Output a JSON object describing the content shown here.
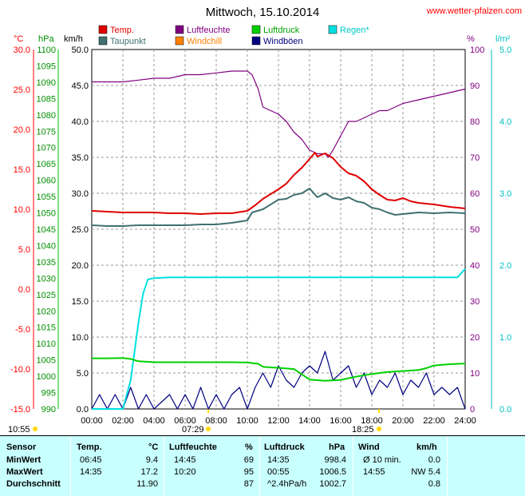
{
  "header": {
    "title": "Mittwoch, 15.10.2014",
    "site": "www.wetter-pfalzen.com"
  },
  "axis_units": {
    "temp": "°C",
    "pressure": "hPa",
    "wind": "km/h",
    "humidity": "%",
    "rain": "l/m²"
  },
  "legend": [
    {
      "label": "Temp.",
      "color": "#e00000"
    },
    {
      "label": "Luftfeuchte",
      "color": "#800080"
    },
    {
      "label": "Luftdruck",
      "color": "#00d000"
    },
    {
      "label": "Regen*",
      "color": "#00e0e0"
    },
    {
      "label": "Taupunkt",
      "color": "#407070"
    },
    {
      "label": "Windchill",
      "color": "#ff8000"
    },
    {
      "label": "Windböen",
      "color": "#000080"
    }
  ],
  "sun": {
    "sunrise_left": "10:55",
    "sunrise": "07:29",
    "sunset": "18:25"
  },
  "chart_data": {
    "type": "line",
    "x_range": [
      0,
      24
    ],
    "x_ticks": [
      "00:00",
      "02:00",
      "04:00",
      "06:00",
      "08:00",
      "10:00",
      "12:00",
      "14:00",
      "16:00",
      "18:00",
      "20:00",
      "22:00",
      "24:00"
    ],
    "axes": {
      "temp": {
        "range": [
          -15,
          30
        ],
        "ticks": [
          "30.0",
          "25.0",
          "20.0",
          "15.0",
          "10.0",
          "5.0",
          "0.0",
          "-5.0",
          "-10.0",
          "-15.0"
        ],
        "color": "#ff0000"
      },
      "pressure": {
        "range": [
          990,
          1100
        ],
        "ticks": [
          "1100",
          "1095",
          "1090",
          "1085",
          "1080",
          "1075",
          "1070",
          "1065",
          "1060",
          "1055",
          "1050",
          "1045",
          "1040",
          "1035",
          "1030",
          "1025",
          "1020",
          "1015",
          "1010",
          "1005",
          "1000",
          "995",
          "990"
        ],
        "color": "#009000"
      },
      "wind": {
        "range": [
          0,
          50
        ],
        "ticks": [
          "50.0",
          "45.0",
          "40.0",
          "35.0",
          "30.0",
          "25.0",
          "20.0",
          "15.0",
          "10.0",
          "5.0",
          "0.0"
        ],
        "color": "#000000"
      },
      "humidity": {
        "range": [
          0,
          100
        ],
        "ticks": [
          "100",
          "90",
          "80",
          "70",
          "60",
          "50",
          "40",
          "30",
          "20",
          "10",
          "0"
        ],
        "color": "#800080"
      },
      "rain": {
        "range": [
          0,
          5
        ],
        "ticks": [
          "5.0",
          "4.0",
          "3.0",
          "2.0",
          "1.0",
          "0.0"
        ],
        "color": "#00c0c0"
      }
    },
    "series": [
      {
        "name": "Temp.",
        "axis": "temp",
        "color": "#e00000",
        "x": [
          0,
          1,
          2,
          3,
          4,
          5,
          6,
          7,
          8,
          9,
          10,
          10.5,
          11,
          12,
          12.5,
          13,
          13.5,
          14,
          14.35,
          14.5,
          15,
          15.5,
          16,
          16.5,
          17,
          17.5,
          18,
          18.5,
          19,
          19.5,
          20,
          20.5,
          21,
          22,
          23,
          24
        ],
        "y": [
          9.8,
          9.7,
          9.6,
          9.6,
          9.6,
          9.5,
          9.5,
          9.4,
          9.5,
          9.5,
          9.8,
          10.5,
          11.3,
          12.5,
          13.2,
          14.3,
          15.2,
          16.3,
          17.1,
          16.6,
          17.0,
          16.4,
          15.3,
          14.5,
          14.2,
          13.5,
          12.5,
          11.8,
          11.2,
          11.1,
          11.4,
          11.0,
          10.8,
          10.6,
          10.3,
          10.1
        ]
      },
      {
        "name": "Taupunkt",
        "axis": "temp",
        "color": "#407070",
        "x": [
          0,
          1,
          2,
          3,
          4,
          5,
          6,
          7,
          8,
          9,
          10,
          10.3,
          11,
          12,
          12.5,
          13,
          13.5,
          14,
          14.5,
          15,
          15.5,
          16,
          16.5,
          17,
          17.5,
          18,
          18.5,
          19,
          19.5,
          20,
          21,
          22,
          23,
          24
        ],
        "y": [
          8.0,
          7.9,
          7.9,
          8.0,
          8.0,
          8.0,
          8.0,
          8.1,
          8.1,
          8.3,
          8.6,
          9.6,
          10.0,
          11.2,
          11.3,
          11.8,
          12.0,
          12.6,
          11.5,
          12.0,
          11.4,
          11.2,
          11.5,
          11.0,
          10.8,
          10.2,
          10.0,
          9.6,
          9.3,
          9.4,
          9.6,
          9.5,
          9.6,
          9.5
        ]
      },
      {
        "name": "Luftfeuchte",
        "axis": "humidity",
        "color": "#800080",
        "x": [
          0,
          1,
          2,
          3,
          4,
          5,
          6,
          7,
          8,
          9,
          10,
          10.3,
          10.7,
          11,
          11.5,
          12,
          12.5,
          13,
          13.5,
          14,
          14.5,
          15,
          15.2,
          15.5,
          16,
          16.5,
          17,
          17.5,
          18,
          18.5,
          19,
          20,
          21,
          22,
          23,
          24
        ],
        "y": [
          91,
          91,
          91,
          91.5,
          92,
          92,
          93,
          93,
          93.5,
          94,
          94,
          93,
          89,
          84,
          83,
          82,
          80,
          77,
          75,
          72,
          71,
          71,
          70,
          72,
          76,
          80,
          80,
          81,
          82,
          83,
          83,
          85,
          86,
          87,
          88,
          89
        ]
      },
      {
        "name": "Luftdruck",
        "axis": "pressure",
        "color": "#00d000",
        "x": [
          0,
          1,
          2,
          2.5,
          3,
          4,
          5,
          6,
          7,
          8,
          9,
          10,
          10.7,
          11,
          11.5,
          12,
          13,
          14,
          15,
          16,
          17,
          18,
          19,
          20,
          21,
          21.5,
          22,
          23,
          24
        ],
        "y": [
          1005.5,
          1005.5,
          1005.6,
          1005.3,
          1004.6,
          1004.3,
          1004.3,
          1004.3,
          1004.3,
          1004.3,
          1004.3,
          1004.2,
          1003.8,
          1002.9,
          1002.7,
          1002.6,
          1002.2,
          999.0,
          998.6,
          998.9,
          999.9,
          1000.7,
          1001.3,
          1001.6,
          1001.9,
          1002.5,
          1003.3,
          1003.7,
          1003.9
        ]
      },
      {
        "name": "Regen*",
        "axis": "rain",
        "color": "#00e0e0",
        "x": [
          0,
          1.5,
          2,
          2.5,
          3,
          3.3,
          3.6,
          4,
          5,
          10,
          15,
          20,
          23.5,
          24
        ],
        "y": [
          0,
          0,
          0,
          0.4,
          1.2,
          1.6,
          1.8,
          1.82,
          1.83,
          1.83,
          1.83,
          1.83,
          1.83,
          1.95
        ]
      },
      {
        "name": "Windböen",
        "axis": "wind",
        "color": "#000080",
        "x": [
          0,
          0.5,
          1,
          1.5,
          2,
          2.5,
          3,
          3.5,
          4,
          4.5,
          5,
          5.5,
          6,
          6.5,
          7,
          7.5,
          8,
          8.5,
          9,
          9.5,
          10,
          10.5,
          11,
          11.5,
          12,
          12.5,
          13,
          13.5,
          14,
          14.5,
          15,
          15.5,
          16,
          16.5,
          17,
          17.5,
          18,
          18.5,
          19,
          19.5,
          20,
          20.5,
          21,
          21.5,
          22,
          22.5,
          23,
          23.5,
          24
        ],
        "y": [
          0,
          2,
          0,
          2,
          0,
          3,
          0,
          2,
          0,
          1,
          2,
          0,
          2,
          0,
          3,
          0,
          2,
          0,
          2,
          3,
          0,
          3,
          5,
          3,
          6,
          4,
          3,
          5,
          6,
          5,
          8,
          4,
          5,
          6,
          3,
          5,
          2,
          4,
          3,
          5,
          2,
          4,
          3,
          5,
          2,
          3,
          2,
          3,
          0
        ]
      }
    ]
  },
  "stats": {
    "headers": {
      "sensor": "Sensor",
      "temp": "Temp.",
      "temp_unit": "°C",
      "hum": "Luftfeuchte",
      "hum_unit": "%",
      "press": "Luftdruck",
      "press_unit": "hPa",
      "wind": "Wind",
      "wind_unit": "km/h"
    },
    "rows": [
      {
        "label": "MinWert",
        "temp_time": "06:45",
        "temp_val": "9.4",
        "hum_time": "14:45",
        "hum_val": "69",
        "press_time": "14:35",
        "press_val": "998.4",
        "wind_time": "Ø 10 min.",
        "wind_val": "0.0"
      },
      {
        "label": "MaxWert",
        "temp_time": "14:35",
        "temp_val": "17.2",
        "hum_time": "10:20",
        "hum_val": "95",
        "press_time": "00:55",
        "press_val": "1006.5",
        "wind_time": "14:55",
        "wind_val": "NW 5.4"
      },
      {
        "label": "Durchschnitt",
        "temp_time": "",
        "temp_val": "11.90",
        "hum_time": "",
        "hum_val": "87",
        "press_time": "^2.4hPa/h",
        "press_val": "1002.7",
        "wind_time": "",
        "wind_val": "0.8"
      }
    ]
  }
}
